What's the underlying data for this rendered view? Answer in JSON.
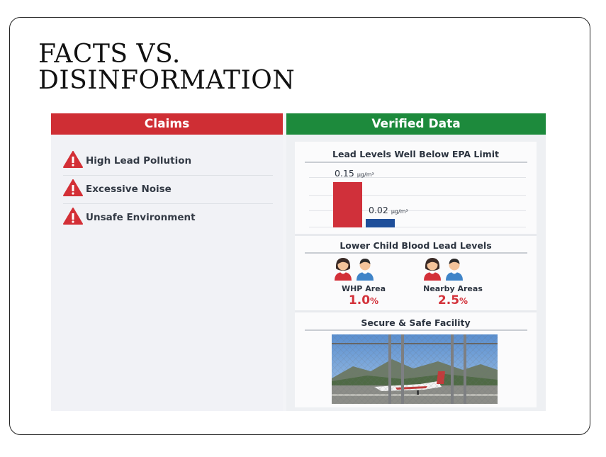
{
  "title_lines": [
    "FACTS VS.",
    "DISINFORMATION"
  ],
  "claims": {
    "header": "Claims",
    "items": [
      {
        "label": "High Lead Pollution",
        "icon": "warning-icon"
      },
      {
        "label": "Excessive Noise",
        "icon": "warning-icon"
      },
      {
        "label": "Unsafe Environment",
        "icon": "warning-icon"
      }
    ]
  },
  "verified": {
    "header": "Verified Data",
    "lead_chart": {
      "title": "Lead Levels Well Below EPA Limit",
      "unit": "µg/m³",
      "bars": [
        {
          "value": "0.15",
          "numeric": 0.15,
          "color": "#d0303a"
        },
        {
          "value": "0.02",
          "numeric": 0.02,
          "color": "#1f4f9a"
        }
      ]
    },
    "blood": {
      "title": "Lower Child Blood Lead Levels",
      "groups": [
        {
          "label": "WHP Area",
          "value": "1.0",
          "unit": "%"
        },
        {
          "label": "Nearby Areas",
          "value": "2.5",
          "unit": "%"
        }
      ]
    },
    "facility": {
      "title": "Secure & Safe Facility"
    }
  },
  "colors": {
    "claims": "#cf2e34",
    "verified": "#1d8a3c",
    "accent_red": "#d3323a"
  }
}
